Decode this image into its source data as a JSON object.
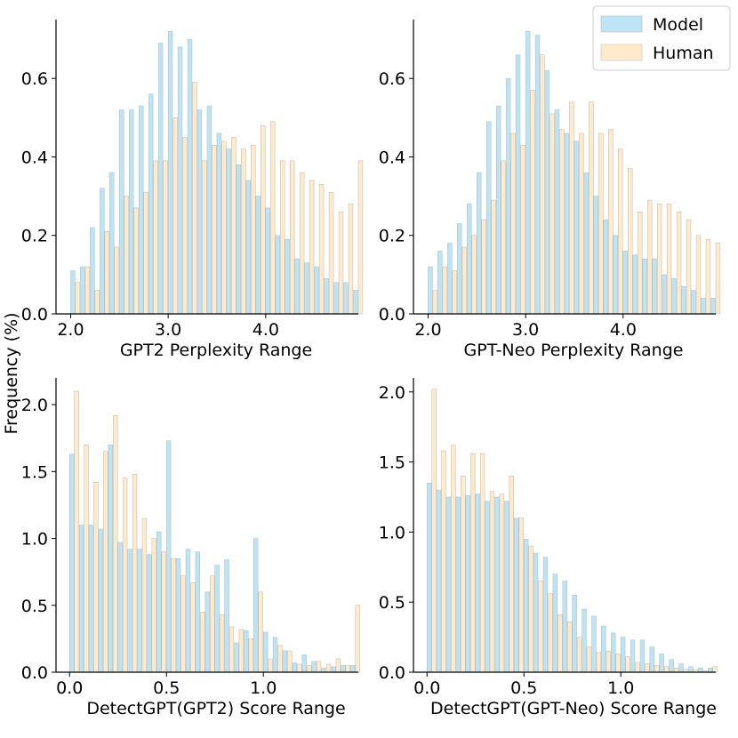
{
  "figure": {
    "ylabel": "Frequency (%)"
  },
  "legend": {
    "placement": "top-right",
    "items": [
      {
        "label": "Model",
        "color": "#87CEEB"
      },
      {
        "label": "Human",
        "color": "#FFDEAD"
      }
    ]
  },
  "chart_data": [
    {
      "type": "bar",
      "id": "gpt2-ppl",
      "xlabel": "GPT2 Perplexity Range",
      "xlim": [
        1.85,
        4.95
      ],
      "ylim": [
        0,
        0.75
      ],
      "xticks": [
        2.0,
        3.0,
        4.0
      ],
      "xtick_labels": [
        "2.0",
        "3.0",
        "4.0"
      ],
      "yticks": [
        0.0,
        0.2,
        0.4,
        0.6
      ],
      "ytick_labels": [
        "0.0",
        "0.2",
        "0.4",
        "0.6"
      ],
      "bin_start": 2.0,
      "bin_width": 0.1,
      "series": [
        {
          "name": "Model",
          "values": [
            0.11,
            0.12,
            0.22,
            0.32,
            0.36,
            0.52,
            0.52,
            0.53,
            0.56,
            0.69,
            0.72,
            0.68,
            0.7,
            0.52,
            0.53,
            0.46,
            0.42,
            0.38,
            0.34,
            0.3,
            0.27,
            0.2,
            0.19,
            0.14,
            0.13,
            0.12,
            0.09,
            0.08,
            0.08,
            0.06
          ]
        },
        {
          "name": "Human",
          "values": [
            0.08,
            0.12,
            0.06,
            0.21,
            0.17,
            0.3,
            0.27,
            0.31,
            0.39,
            0.39,
            0.5,
            0.45,
            0.59,
            0.39,
            0.43,
            0.44,
            0.45,
            0.42,
            0.43,
            0.48,
            0.49,
            0.39,
            0.39,
            0.36,
            0.34,
            0.33,
            0.31,
            0.26,
            0.28,
            0.39
          ]
        }
      ]
    },
    {
      "type": "bar",
      "id": "gptneo-ppl",
      "xlabel": "GPT-Neo Perplexity Range",
      "xlim": [
        1.85,
        4.95
      ],
      "ylim": [
        0,
        0.75
      ],
      "xticks": [
        2.0,
        3.0,
        4.0
      ],
      "xtick_labels": [
        "2.0",
        "3.0",
        "4.0"
      ],
      "yticks": [
        0.0,
        0.2,
        0.4,
        0.6
      ],
      "ytick_labels": [
        "0.0",
        "0.2",
        "0.4",
        "0.6"
      ],
      "bin_start": 2.0,
      "bin_width": 0.1,
      "series": [
        {
          "name": "Model",
          "values": [
            0.12,
            0.16,
            0.18,
            0.23,
            0.28,
            0.36,
            0.49,
            0.53,
            0.6,
            0.66,
            0.72,
            0.71,
            0.62,
            0.52,
            0.46,
            0.44,
            0.36,
            0.3,
            0.24,
            0.2,
            0.16,
            0.15,
            0.14,
            0.14,
            0.1,
            0.09,
            0.07,
            0.06,
            0.04,
            0.04
          ]
        },
        {
          "name": "Human",
          "values": [
            0.06,
            0.12,
            0.11,
            0.17,
            0.2,
            0.24,
            0.29,
            0.39,
            0.46,
            0.43,
            0.57,
            0.66,
            0.51,
            0.47,
            0.54,
            0.46,
            0.54,
            0.46,
            0.47,
            0.42,
            0.37,
            0.26,
            0.29,
            0.28,
            0.28,
            0.26,
            0.24,
            0.2,
            0.19,
            0.18
          ]
        }
      ]
    },
    {
      "type": "bar",
      "id": "detectgpt-gpt2",
      "xlabel": "DetectGPT(GPT2) Score Range",
      "xlim": [
        -0.07,
        1.49
      ],
      "ylim": [
        0,
        2.2
      ],
      "xticks": [
        0.0,
        0.5,
        1.0
      ],
      "xtick_labels": [
        "0.0",
        "0.5",
        "1.0"
      ],
      "yticks": [
        0.0,
        0.5,
        1.0,
        1.5,
        2.0
      ],
      "ytick_labels": [
        "0.0",
        "0.5",
        "1.0",
        "1.5",
        "2.0"
      ],
      "bin_start": 0.0,
      "bin_width": 0.05,
      "series": [
        {
          "name": "Model",
          "values": [
            1.63,
            1.1,
            1.1,
            1.07,
            1.7,
            0.97,
            0.92,
            0.92,
            0.88,
            1.05,
            1.73,
            0.85,
            0.92,
            0.9,
            0.6,
            0.8,
            0.84,
            0.22,
            0.31,
            1.0,
            0.3,
            0.26,
            0.16,
            0.07,
            0.13,
            0.08,
            0.03,
            0.04,
            0.05,
            0.05
          ]
        },
        {
          "name": "Human",
          "values": [
            2.1,
            1.7,
            1.42,
            1.65,
            1.92,
            1.45,
            1.48,
            1.15,
            1.0,
            0.9,
            0.85,
            0.72,
            0.67,
            0.45,
            0.72,
            0.43,
            0.34,
            0.32,
            0.25,
            0.6,
            0.1,
            0.2,
            0.16,
            0.06,
            0.05,
            0.08,
            0.06,
            0.1,
            0.05,
            0.5
          ]
        }
      ]
    },
    {
      "type": "bar",
      "id": "detectgpt-gptneo",
      "xlabel": "DetectGPT(GPT-Neo) Score Range",
      "xlim": [
        -0.07,
        1.49
      ],
      "ylim": [
        0,
        2.1
      ],
      "xticks": [
        0.0,
        0.5,
        1.0
      ],
      "xtick_labels": [
        "0.0",
        "0.5",
        "1.0"
      ],
      "yticks": [
        0.0,
        0.5,
        1.0,
        1.5,
        2.0
      ],
      "ytick_labels": [
        "0.0",
        "0.5",
        "1.0",
        "1.5",
        "2.0"
      ],
      "bin_start": 0.0,
      "bin_width": 0.05,
      "series": [
        {
          "name": "Model",
          "values": [
            1.35,
            1.3,
            1.25,
            1.25,
            1.26,
            1.27,
            1.22,
            1.25,
            1.22,
            1.1,
            0.95,
            0.85,
            0.82,
            0.7,
            0.65,
            0.55,
            0.45,
            0.4,
            0.33,
            0.28,
            0.25,
            0.23,
            0.23,
            0.18,
            0.13,
            0.09,
            0.06,
            0.04,
            0.03,
            0.03
          ]
        },
        {
          "name": "Human",
          "values": [
            2.02,
            1.58,
            1.62,
            1.4,
            1.56,
            1.56,
            1.29,
            1.27,
            1.4,
            1.1,
            0.9,
            0.65,
            0.56,
            0.41,
            0.36,
            0.25,
            0.18,
            0.14,
            0.15,
            0.13,
            0.11,
            0.07,
            0.06,
            0.05,
            0.04,
            0.03,
            0.02,
            0.02,
            0.01,
            0.04
          ]
        }
      ]
    }
  ]
}
